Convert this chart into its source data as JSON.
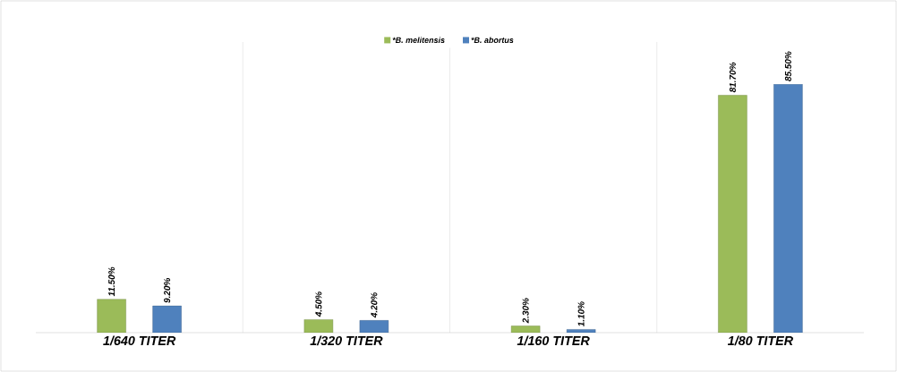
{
  "chart_data": {
    "type": "bar",
    "categories": [
      "1/640 TITER",
      "1/320 TITER",
      "1/160 TITER",
      "1/80 TITER"
    ],
    "series": [
      {
        "name": "*B. melitensis",
        "color": "#9bbb59",
        "values": [
          11.5,
          4.5,
          2.3,
          81.7
        ],
        "value_labels": [
          "11.50%",
          "4.50%",
          "2.30%",
          "81.70%"
        ]
      },
      {
        "name": "*B. abortus",
        "color": "#4f81bd",
        "values": [
          9.2,
          4.2,
          1.1,
          85.5
        ],
        "value_labels": [
          "9.20%",
          "4.20%",
          "1.10%",
          "85.50%"
        ]
      }
    ],
    "legend": "top"
  }
}
